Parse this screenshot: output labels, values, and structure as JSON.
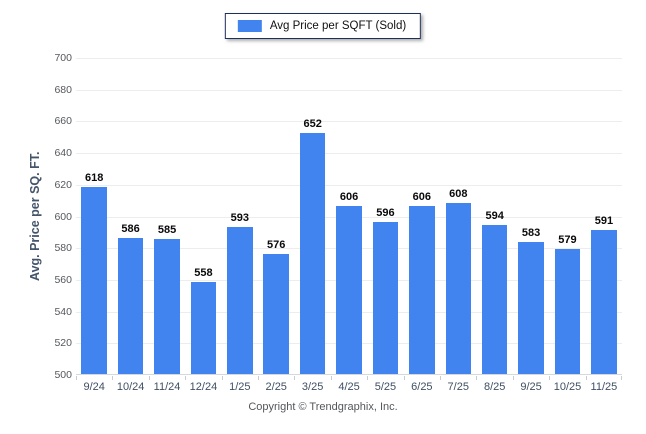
{
  "legend": {
    "label": "Avg Price per SQFT (Sold)",
    "swatch_color": "#4183ef"
  },
  "footer": {
    "text": "Copyright © Trendgraphix, Inc."
  },
  "chart_data": {
    "type": "bar",
    "title": "Avg Price per SQFT (Sold)",
    "categories": [
      "9/24",
      "10/24",
      "11/24",
      "12/24",
      "1/25",
      "2/25",
      "3/25",
      "4/25",
      "5/25",
      "6/25",
      "7/25",
      "8/25",
      "9/25",
      "10/25",
      "11/25"
    ],
    "values": [
      618,
      586,
      585,
      558,
      593,
      576,
      652,
      606,
      596,
      606,
      608,
      594,
      583,
      579,
      591
    ],
    "ylabel": "Avg. Price per SQ. FT.",
    "xlabel": "",
    "ylim": [
      500,
      700
    ],
    "ytick_step": 20,
    "grid": true,
    "legend_position": "top-center",
    "bar_color": "#4183ef",
    "data_labels": true
  }
}
